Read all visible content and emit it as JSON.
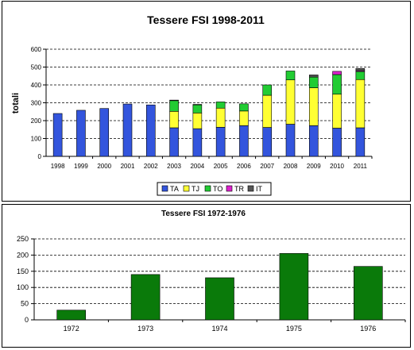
{
  "chart_data": [
    {
      "type": "bar",
      "stacked": true,
      "title": "Tessere FSI 1998-2011",
      "xlabel": "",
      "ylabel": "totali",
      "ylim": [
        0,
        600
      ],
      "yticks": [
        0,
        100,
        200,
        300,
        400,
        500,
        600
      ],
      "grid": true,
      "legend_position": "bottom",
      "categories": [
        "1998",
        "1999",
        "2000",
        "2001",
        "2002",
        "2003",
        "2004",
        "2005",
        "2006",
        "2007",
        "2008",
        "2009",
        "2010",
        "2011"
      ],
      "series": [
        {
          "name": "TA",
          "color": "#3355dd",
          "values": [
            240,
            258,
            268,
            293,
            288,
            160,
            155,
            163,
            172,
            162,
            180,
            172,
            158,
            160
          ]
        },
        {
          "name": "TJ",
          "color": "#ffff33",
          "values": [
            0,
            0,
            0,
            0,
            0,
            92,
            88,
            107,
            82,
            180,
            248,
            212,
            190,
            270
          ]
        },
        {
          "name": "TO",
          "color": "#22cc33",
          "values": [
            0,
            0,
            0,
            0,
            0,
            60,
            45,
            35,
            40,
            58,
            50,
            60,
            110,
            45
          ]
        },
        {
          "name": "TR",
          "color": "#dd22cc",
          "values": [
            0,
            0,
            0,
            0,
            0,
            0,
            0,
            0,
            0,
            0,
            0,
            0,
            18,
            5
          ]
        },
        {
          "name": "IT",
          "color": "#555555",
          "values": [
            0,
            0,
            0,
            0,
            0,
            3,
            3,
            0,
            0,
            0,
            0,
            12,
            0,
            12
          ]
        }
      ]
    },
    {
      "type": "bar",
      "title": "Tessere FSI 1972-1976",
      "xlabel": "",
      "ylabel": "",
      "ylim": [
        0,
        250
      ],
      "yticks": [
        0,
        50,
        100,
        150,
        200,
        250
      ],
      "grid": true,
      "categories": [
        "1972",
        "1973",
        "1974",
        "1975",
        "1976"
      ],
      "series": [
        {
          "color": "#0a7a0a",
          "values": [
            30,
            140,
            130,
            205,
            165
          ]
        }
      ]
    }
  ]
}
